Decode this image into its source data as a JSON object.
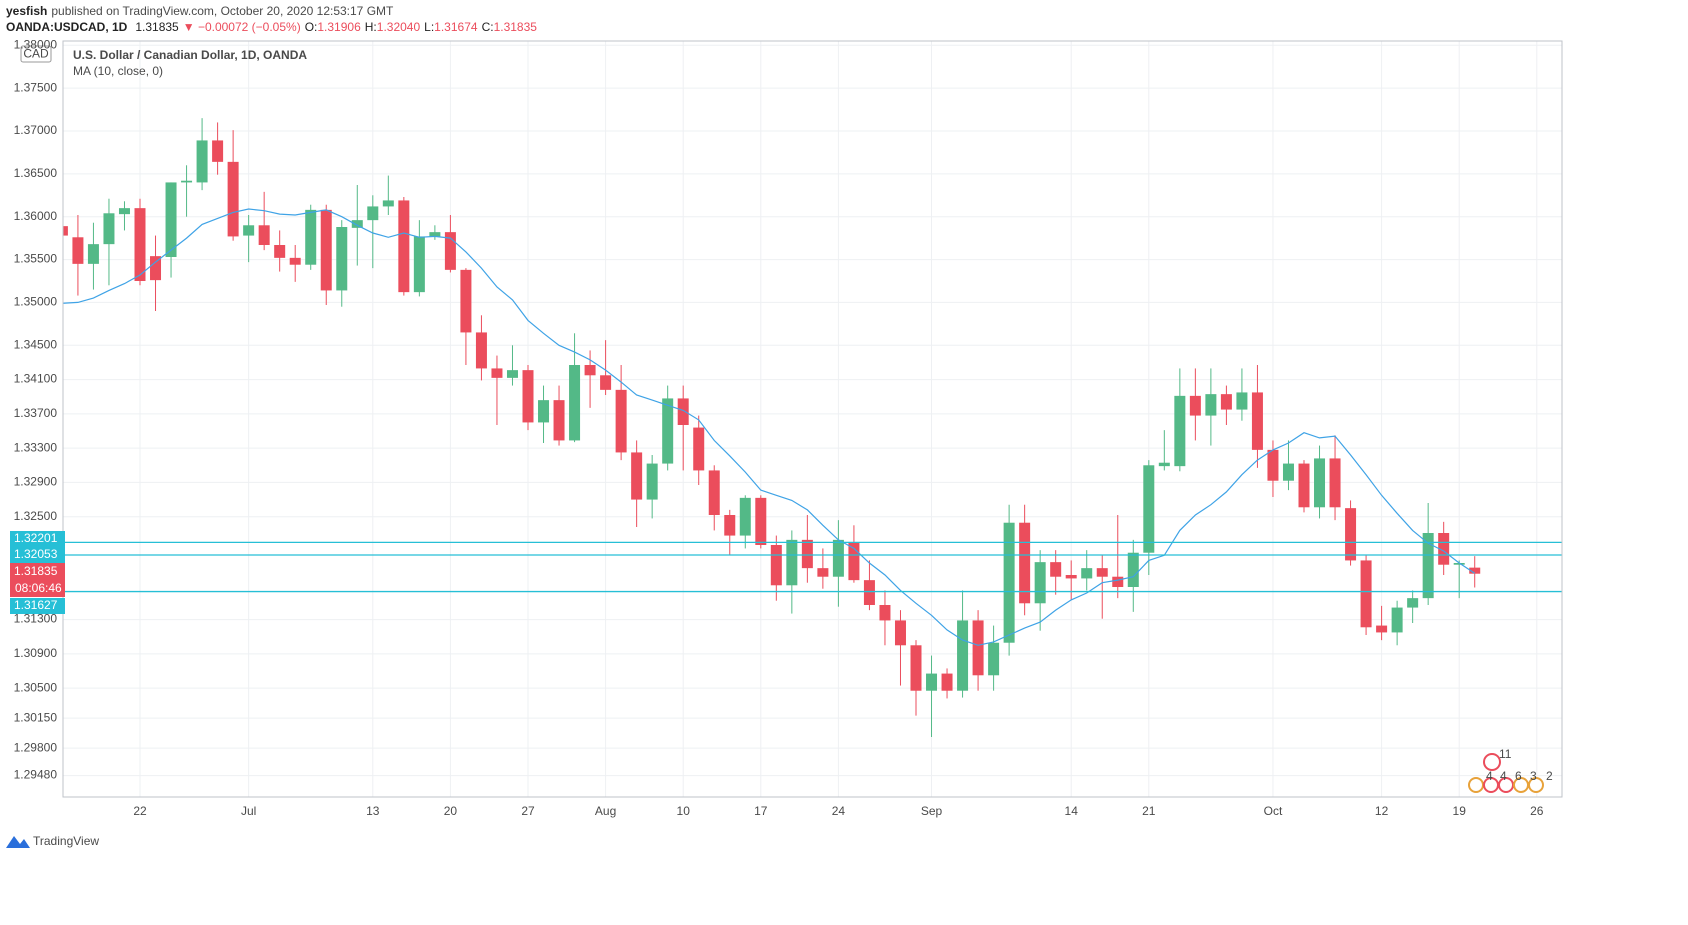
{
  "header": {
    "user": "yesfish",
    "published": "published on TradingView.com, October 20, 2020 12:53:17 GMT",
    "symbol": "OANDA:USDCAD, 1D",
    "last": "1.31835",
    "change": "▼ −0.00072 (−0.05%)",
    "o_label": "O:",
    "open": "1.31906",
    "h_label": "H:",
    "high": "1.32040",
    "l_label": "L:",
    "low": "1.31674",
    "c_label": "C:",
    "close": "1.31835"
  },
  "chart_data": {
    "type": "candlestick",
    "title": "U.S. Dollar / Canadian Dollar, 1D, OANDA",
    "currency": "CAD",
    "up_color": "#53b987",
    "down_color": "#eb4d5c",
    "categories": [
      null,
      null,
      null,
      null,
      null,
      "22",
      null,
      null,
      null,
      null,
      null,
      null,
      "Jul",
      null,
      null,
      null,
      null,
      null,
      null,
      null,
      "13",
      null,
      null,
      null,
      null,
      "20",
      null,
      null,
      null,
      null,
      "27",
      null,
      null,
      null,
      null,
      "Aug",
      null,
      null,
      null,
      null,
      "10",
      null,
      null,
      null,
      null,
      "17",
      null,
      null,
      null,
      null,
      "24",
      null,
      null,
      null,
      null,
      null,
      "Sep",
      null,
      null,
      null,
      null,
      null,
      null,
      null,
      null,
      "14",
      null,
      null,
      null,
      null,
      "21",
      null,
      null,
      null,
      null,
      null,
      null,
      null,
      "Oct",
      null,
      null,
      null,
      null,
      null,
      null,
      "12",
      null,
      null,
      null,
      null,
      "19",
      null,
      null,
      null,
      null,
      "26",
      null
    ],
    "open": [
      1.3589,
      1.3576,
      1.3545,
      1.3568,
      1.3603,
      1.361,
      1.3554,
      1.3553,
      1.364,
      1.364,
      1.3689,
      1.3664,
      1.3578,
      1.359,
      1.3567,
      1.3552,
      1.3544,
      1.3608,
      1.3514,
      1.3587,
      1.3596,
      1.3612,
      1.3619,
      1.3512,
      1.3577,
      1.3582,
      1.3538,
      1.3465,
      1.3423,
      1.3412,
      1.3421,
      1.336,
      1.3386,
      1.3339,
      1.3427,
      1.3415,
      1.3398,
      1.3325,
      1.327,
      1.3312,
      1.3388,
      1.3354,
      1.3304,
      1.3252,
      1.3228,
      1.3272,
      1.3217,
      1.317,
      1.3223,
      1.319,
      1.318,
      1.322,
      1.3176,
      1.3147,
      1.3129,
      1.31,
      1.3047,
      1.3067,
      1.3047,
      1.3129,
      1.3065,
      1.3103,
      1.3243,
      1.3149,
      1.3197,
      1.3182,
      1.3178,
      1.319,
      1.318,
      1.3168,
      1.3208,
      1.3309,
      1.3309,
      1.3391,
      1.3368,
      1.3393,
      1.3375,
      1.3395,
      1.3328,
      1.3292,
      1.3312,
      1.3261,
      1.3318,
      1.326,
      1.3199,
      1.3123,
      1.3115,
      1.3144,
      1.3155,
      1.3231,
      1.3194,
      1.31906,
      null,
      null,
      null,
      null,
      null
    ],
    "high": [
      1.36,
      1.3602,
      1.3593,
      1.3621,
      1.3618,
      1.3621,
      1.3578,
      1.364,
      1.366,
      1.3715,
      1.371,
      1.3701,
      1.3602,
      1.3629,
      1.3584,
      1.3567,
      1.3614,
      1.3614,
      1.3596,
      1.3637,
      1.3625,
      1.3648,
      1.3623,
      1.3596,
      1.359,
      1.3602,
      1.354,
      1.3485,
      1.3438,
      1.345,
      1.3427,
      1.3403,
      1.3403,
      1.3464,
      1.3444,
      1.3456,
      1.3427,
      1.3339,
      1.3322,
      1.3403,
      1.3403,
      1.3368,
      1.331,
      1.3258,
      1.3275,
      1.3275,
      1.3228,
      1.3234,
      1.3252,
      1.3213,
      1.3246,
      1.324,
      1.3199,
      1.3164,
      1.3141,
      1.3106,
      1.3088,
      1.3073,
      1.3164,
      1.3141,
      1.3123,
      1.3264,
      1.3264,
      1.3211,
      1.3211,
      1.3199,
      1.3211,
      1.3205,
      1.3252,
      1.3223,
      1.3316,
      1.3351,
      1.3423,
      1.3423,
      1.3423,
      1.3403,
      1.3423,
      1.3427,
      1.3339,
      1.3339,
      1.3316,
      1.3333,
      1.3345,
      1.3269,
      1.3205,
      1.3146,
      1.3152,
      1.3164,
      1.3266,
      1.3244,
      1.3199,
      1.3204,
      null,
      null,
      null,
      null,
      null
    ],
    "low": [
      1.357,
      1.3508,
      1.3515,
      1.352,
      1.3584,
      1.352,
      1.349,
      1.3529,
      1.36,
      1.3631,
      1.3649,
      1.3572,
      1.3547,
      1.3561,
      1.3536,
      1.3524,
      1.3538,
      1.3497,
      1.3495,
      1.3543,
      1.354,
      1.3602,
      1.3508,
      1.3507,
      1.3573,
      1.3535,
      1.3427,
      1.3409,
      1.3357,
      1.3403,
      1.3351,
      1.3336,
      1.3333,
      1.3337,
      1.3377,
      1.3392,
      1.3316,
      1.3238,
      1.3248,
      1.3304,
      1.3304,
      1.3287,
      1.3234,
      1.3205,
      1.3213,
      1.3213,
      1.3152,
      1.3137,
      1.3173,
      1.3166,
      1.3145,
      1.3173,
      1.3141,
      1.31,
      1.3053,
      1.3018,
      1.2993,
      1.3038,
      1.3039,
      1.3047,
      1.3047,
      1.3088,
      1.3135,
      1.3117,
      1.3159,
      1.3153,
      1.3164,
      1.3131,
      1.3155,
      1.3139,
      1.3182,
      1.3304,
      1.3303,
      1.3339,
      1.3333,
      1.3357,
      1.3362,
      1.3307,
      1.3273,
      1.3281,
      1.3255,
      1.3248,
      1.3246,
      1.3193,
      1.3112,
      1.3106,
      1.31,
      1.3126,
      1.3147,
      1.3182,
      1.3155,
      1.31674,
      null,
      null,
      null,
      null,
      null
    ],
    "close": [
      1.3578,
      1.3545,
      1.3568,
      1.3604,
      1.361,
      1.3525,
      1.3526,
      1.364,
      1.3642,
      1.3689,
      1.3664,
      1.3577,
      1.359,
      1.3567,
      1.3552,
      1.3544,
      1.3608,
      1.3514,
      1.3588,
      1.3596,
      1.3612,
      1.3619,
      1.3512,
      1.3577,
      1.3582,
      1.3538,
      1.3465,
      1.3423,
      1.3412,
      1.3421,
      1.336,
      1.3386,
      1.3339,
      1.3427,
      1.3415,
      1.3398,
      1.3325,
      1.327,
      1.3312,
      1.3388,
      1.3357,
      1.3304,
      1.3252,
      1.3228,
      1.3272,
      1.3217,
      1.317,
      1.3223,
      1.319,
      1.318,
      1.3223,
      1.3176,
      1.3147,
      1.3129,
      1.31,
      1.3047,
      1.3067,
      1.3047,
      1.3129,
      1.3065,
      1.3103,
      1.3243,
      1.3149,
      1.3197,
      1.318,
      1.3178,
      1.319,
      1.318,
      1.3168,
      1.3208,
      1.331,
      1.3313,
      1.3391,
      1.3368,
      1.3393,
      1.3375,
      1.3395,
      1.3328,
      1.3292,
      1.3312,
      1.3261,
      1.3318,
      1.3261,
      1.3199,
      1.3121,
      1.3115,
      1.3144,
      1.3155,
      1.3231,
      1.3194,
      1.3196,
      1.31835,
      null,
      null,
      null,
      null,
      null
    ],
    "series": [
      {
        "name": "MA (10, close, 0)",
        "color": "#3fa3e6",
        "values": [
          1.3499,
          1.35,
          1.3505,
          1.3514,
          1.3522,
          1.3532,
          1.3547,
          1.3561,
          1.3575,
          1.3591,
          1.3598,
          1.3605,
          1.3609,
          1.3607,
          1.3603,
          1.3602,
          1.3605,
          1.3608,
          1.36,
          1.359,
          1.3581,
          1.3576,
          1.3581,
          1.3576,
          1.3577,
          1.3575,
          1.3559,
          1.354,
          1.3518,
          1.3503,
          1.3479,
          1.3464,
          1.345,
          1.3442,
          1.3433,
          1.3421,
          1.3407,
          1.3392,
          1.3386,
          1.338,
          1.3374,
          1.3363,
          1.3339,
          1.3321,
          1.3302,
          1.3281,
          1.3275,
          1.3269,
          1.3258,
          1.324,
          1.3223,
          1.3213,
          1.3196,
          1.3182,
          1.3164,
          1.3149,
          1.3135,
          1.3118,
          1.3106,
          1.31,
          1.3104,
          1.3112,
          1.312,
          1.3127,
          1.3141,
          1.3153,
          1.3161,
          1.3173,
          1.3176,
          1.318,
          1.3199,
          1.3205,
          1.3234,
          1.3252,
          1.3264,
          1.3279,
          1.3299,
          1.3316,
          1.3328,
          1.3336,
          1.3348,
          1.3342,
          1.3344,
          1.3322,
          1.3299,
          1.3275,
          1.3254,
          1.3234,
          1.3219,
          1.321,
          1.3196,
          1.3184,
          null,
          null,
          null,
          null,
          null
        ]
      }
    ],
    "ylim": [
      1.2923,
      1.3805
    ],
    "yticks": [
      {
        "value": 1.38,
        "label": "1.38000"
      },
      {
        "value": 1.375,
        "label": "1.37500"
      },
      {
        "value": 1.37,
        "label": "1.37000"
      },
      {
        "value": 1.365,
        "label": "1.36500"
      },
      {
        "value": 1.36,
        "label": "1.36000"
      },
      {
        "value": 1.355,
        "label": "1.35500"
      },
      {
        "value": 1.35,
        "label": "1.35000"
      },
      {
        "value": 1.345,
        "label": "1.34500"
      },
      {
        "value": 1.341,
        "label": "1.34100"
      },
      {
        "value": 1.337,
        "label": "1.33700"
      },
      {
        "value": 1.333,
        "label": "1.33300"
      },
      {
        "value": 1.329,
        "label": "1.32900"
      },
      {
        "value": 1.325,
        "label": "1.32500"
      },
      {
        "value": 1.313,
        "label": "1.31300"
      },
      {
        "value": 1.309,
        "label": "1.30900"
      },
      {
        "value": 1.305,
        "label": "1.30500"
      },
      {
        "value": 1.3015,
        "label": "1.30150"
      },
      {
        "value": 1.298,
        "label": "1.29800"
      },
      {
        "value": 1.2948,
        "label": "1.29480"
      }
    ],
    "grid": true,
    "levels": [
      1.32201,
      1.32053,
      1.31627
    ],
    "level_color": "#26bfd6",
    "countdown": "08:06:46",
    "events": [
      "11",
      "4",
      "4",
      "6",
      "3",
      "2"
    ]
  },
  "footer": {
    "brand": "TradingView"
  }
}
